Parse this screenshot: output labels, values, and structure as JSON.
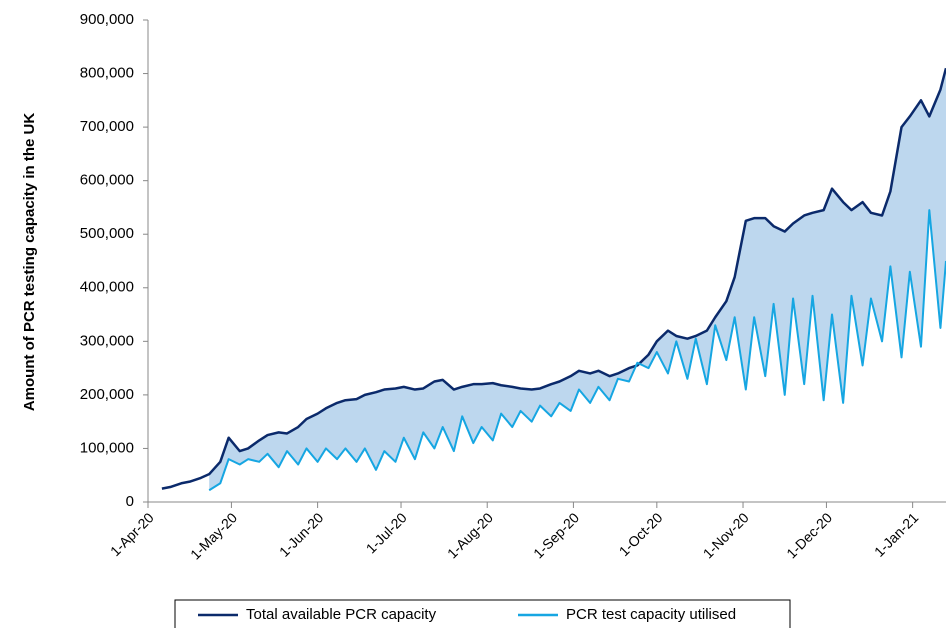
{
  "chart_data": {
    "type": "line",
    "ylabel": "Amount of PCR testing capacity in the UK",
    "x": [
      "2020-04-06",
      "2020-04-09",
      "2020-04-13",
      "2020-04-16",
      "2020-04-20",
      "2020-04-23",
      "2020-04-27",
      "2020-04-30",
      "2020-05-04",
      "2020-05-07",
      "2020-05-11",
      "2020-05-14",
      "2020-05-18",
      "2020-05-21",
      "2020-05-25",
      "2020-05-28",
      "2020-06-01",
      "2020-06-04",
      "2020-06-08",
      "2020-06-11",
      "2020-06-15",
      "2020-06-18",
      "2020-06-22",
      "2020-06-25",
      "2020-06-29",
      "2020-07-02",
      "2020-07-06",
      "2020-07-09",
      "2020-07-13",
      "2020-07-16",
      "2020-07-20",
      "2020-07-23",
      "2020-07-27",
      "2020-07-30",
      "2020-08-03",
      "2020-08-06",
      "2020-08-10",
      "2020-08-13",
      "2020-08-17",
      "2020-08-20",
      "2020-08-24",
      "2020-08-27",
      "2020-08-31",
      "2020-09-03",
      "2020-09-07",
      "2020-09-10",
      "2020-09-14",
      "2020-09-17",
      "2020-09-21",
      "2020-09-24",
      "2020-09-28",
      "2020-10-01",
      "2020-10-05",
      "2020-10-08",
      "2020-10-12",
      "2020-10-15",
      "2020-10-19",
      "2020-10-22",
      "2020-10-26",
      "2020-10-29",
      "2020-11-02",
      "2020-11-05",
      "2020-11-09",
      "2020-11-12",
      "2020-11-16",
      "2020-11-19",
      "2020-11-23",
      "2020-11-26",
      "2020-11-30",
      "2020-12-03",
      "2020-12-07",
      "2020-12-10",
      "2020-12-14",
      "2020-12-17",
      "2020-12-21",
      "2020-12-24",
      "2020-12-28",
      "2020-12-31",
      "2021-01-04",
      "2021-01-07",
      "2021-01-11",
      "2021-01-13"
    ],
    "series": [
      {
        "name": "Total available PCR capacity",
        "color": "#0b2a6b",
        "values": [
          25000,
          28000,
          35000,
          38000,
          45000,
          52000,
          75000,
          120000,
          95000,
          100000,
          115000,
          125000,
          130000,
          128000,
          140000,
          155000,
          165000,
          175000,
          185000,
          190000,
          192000,
          200000,
          205000,
          210000,
          212000,
          215000,
          210000,
          212000,
          225000,
          228000,
          210000,
          215000,
          220000,
          220000,
          222000,
          218000,
          215000,
          212000,
          210000,
          212000,
          220000,
          225000,
          235000,
          245000,
          240000,
          245000,
          235000,
          240000,
          250000,
          255000,
          275000,
          300000,
          320000,
          310000,
          305000,
          310000,
          320000,
          345000,
          375000,
          420000,
          525000,
          530000,
          530000,
          515000,
          505000,
          520000,
          535000,
          540000,
          545000,
          585000,
          560000,
          545000,
          560000,
          540000,
          535000,
          580000,
          700000,
          720000,
          750000,
          720000,
          770000,
          810000
        ]
      },
      {
        "name": "PCR test capacity utilised",
        "color": "#16a6e2",
        "values": [
          null,
          null,
          null,
          null,
          null,
          22000,
          35000,
          80000,
          70000,
          80000,
          75000,
          90000,
          65000,
          95000,
          70000,
          100000,
          75000,
          100000,
          80000,
          100000,
          75000,
          100000,
          60000,
          95000,
          75000,
          120000,
          80000,
          130000,
          100000,
          140000,
          95000,
          160000,
          110000,
          140000,
          115000,
          165000,
          140000,
          170000,
          150000,
          180000,
          160000,
          185000,
          170000,
          210000,
          185000,
          215000,
          190000,
          230000,
          225000,
          260000,
          250000,
          280000,
          240000,
          300000,
          230000,
          305000,
          220000,
          330000,
          265000,
          345000,
          210000,
          345000,
          235000,
          370000,
          200000,
          380000,
          220000,
          385000,
          190000,
          350000,
          185000,
          385000,
          255000,
          380000,
          300000,
          440000,
          270000,
          430000,
          290000,
          545000,
          325000,
          450000
        ]
      }
    ],
    "area_color": "#bdd7ee",
    "xlim": [
      "2020-04-01",
      "2021-01-13"
    ],
    "xticks": [
      {
        "value": "2020-04-01",
        "label": "1-Apr-20"
      },
      {
        "value": "2020-05-01",
        "label": "1-May-20"
      },
      {
        "value": "2020-06-01",
        "label": "1-Jun-20"
      },
      {
        "value": "2020-07-01",
        "label": "1-Jul-20"
      },
      {
        "value": "2020-08-01",
        "label": "1-Aug-20"
      },
      {
        "value": "2020-09-01",
        "label": "1-Sep-20"
      },
      {
        "value": "2020-10-01",
        "label": "1-Oct-20"
      },
      {
        "value": "2020-11-01",
        "label": "1-Nov-20"
      },
      {
        "value": "2020-12-01",
        "label": "1-Dec-20"
      },
      {
        "value": "2021-01-01",
        "label": "1-Jan-21"
      }
    ],
    "ylim": [
      0,
      900000
    ],
    "yticks": [
      0,
      {
        "value": 100000,
        "label": "100,000"
      },
      {
        "value": 200000,
        "label": "200,000"
      },
      {
        "value": 300000,
        "label": "300,000"
      },
      {
        "value": 400000,
        "label": "400,000"
      },
      {
        "value": 500000,
        "label": "500,000"
      },
      {
        "value": 600000,
        "label": "600,000"
      },
      {
        "value": 700000,
        "label": "700,000"
      },
      {
        "value": 800000,
        "label": "800,000"
      },
      {
        "value": 900000,
        "label": "900,000"
      }
    ],
    "legend": "bottom"
  }
}
